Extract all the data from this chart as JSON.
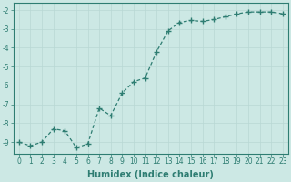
{
  "x": [
    0,
    1,
    2,
    3,
    4,
    5,
    6,
    7,
    8,
    9,
    10,
    11,
    12,
    13,
    14,
    15,
    16,
    17,
    18,
    19,
    20,
    21,
    22,
    23
  ],
  "y": [
    -9.0,
    -9.2,
    -9.0,
    -8.3,
    -8.4,
    -9.3,
    -9.1,
    -7.2,
    -7.6,
    -6.4,
    -5.8,
    -5.6,
    -4.2,
    -3.1,
    -2.65,
    -2.55,
    -2.6,
    -2.5,
    -2.35,
    -2.2,
    -2.1,
    -2.1,
    -2.1,
    -2.2
  ],
  "line_color": "#2e7d72",
  "marker": "+",
  "marker_size": 4,
  "bg_color": "#cce8e4",
  "grid_color": "#b8d8d4",
  "xlabel": "Humidex (Indice chaleur)",
  "ylabel": "",
  "xlim": [
    -0.5,
    23.5
  ],
  "ylim": [
    -9.6,
    -1.6
  ],
  "yticks": [
    -9,
    -8,
    -7,
    -6,
    -5,
    -4,
    -3,
    -2
  ],
  "xticks": [
    0,
    1,
    2,
    3,
    4,
    5,
    6,
    7,
    8,
    9,
    10,
    11,
    12,
    13,
    14,
    15,
    16,
    17,
    18,
    19,
    20,
    21,
    22,
    23
  ],
  "tick_label_size": 5.5,
  "xlabel_size": 7,
  "line_width": 0.9,
  "marker_size_plot": 5
}
